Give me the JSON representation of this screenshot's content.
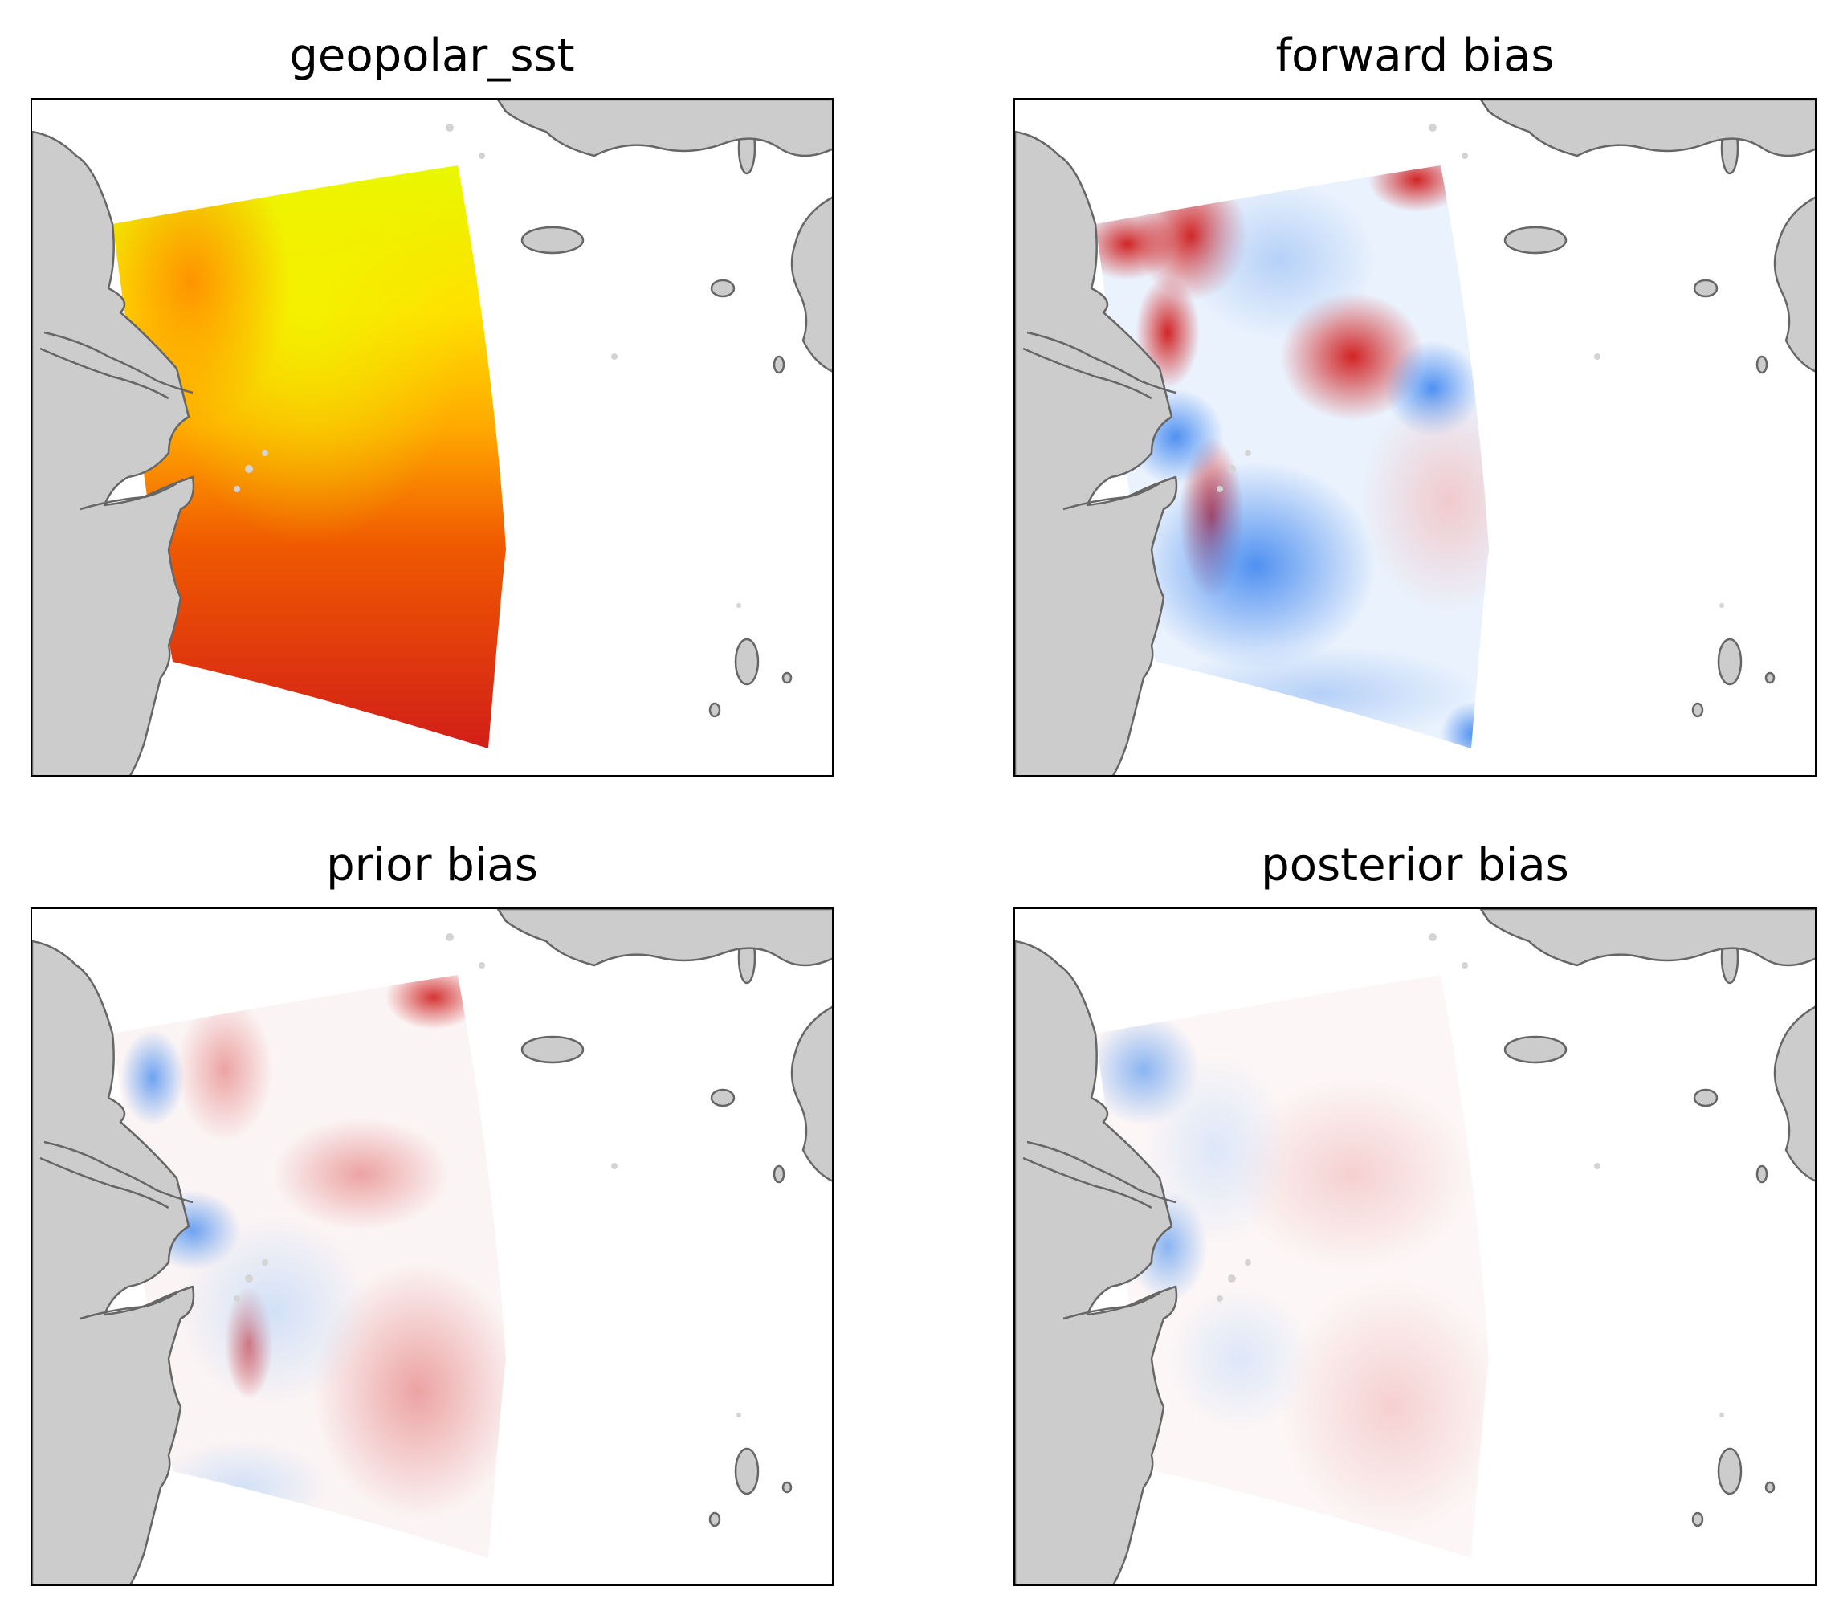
{
  "figure": {
    "panels": [
      {
        "id": "sst",
        "title": "geopolar_sst",
        "colormap": "hot-yellow-red",
        "colors": {
          "north": "#e6ff00",
          "center": "#ffd200",
          "south": "#d4261b",
          "coast": "#ff8800"
        }
      },
      {
        "id": "forward",
        "title": "forward bias",
        "colormap": "blue-white-red",
        "colors": {
          "positive": "#d62727",
          "negative": "#4a90f0",
          "neutral": "#ffffff"
        }
      },
      {
        "id": "prior",
        "title": "prior bias",
        "colormap": "blue-white-red",
        "colors": {
          "positive": "#e05555",
          "negative": "#5a9af0",
          "neutral": "#ffffff"
        }
      },
      {
        "id": "posterior",
        "title": "posterior bias",
        "colormap": "blue-white-red",
        "colors": {
          "positive": "#e88080",
          "negative": "#6aa5f2",
          "neutral": "#ffffff"
        }
      }
    ],
    "land_color": "#cccccc",
    "coast_color": "#666666"
  }
}
